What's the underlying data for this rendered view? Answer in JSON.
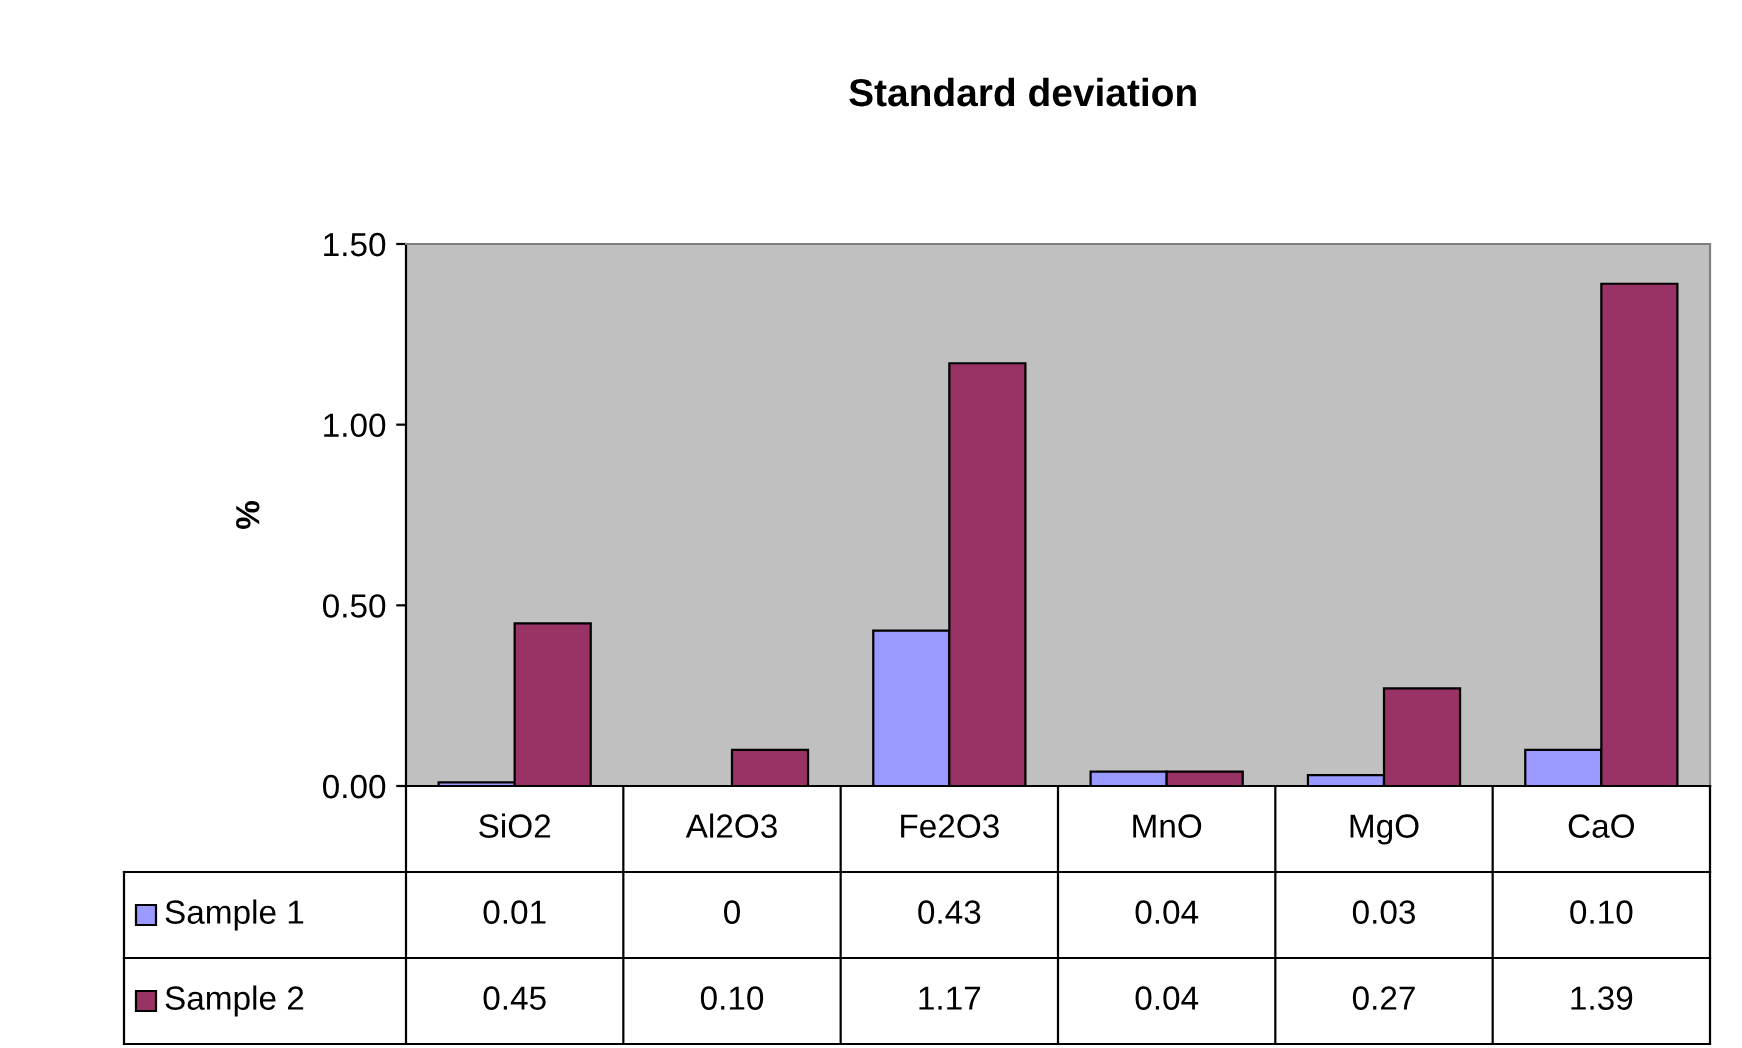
{
  "chart_data": {
    "type": "bar",
    "title": "Standard deviation",
    "ylabel": "%",
    "categories": [
      "SiO2",
      "Al2O3",
      "Fe2O3",
      "MnO",
      "MgO",
      "CaO"
    ],
    "series": [
      {
        "name": "Sample 1",
        "color": "#9999ff",
        "values": [
          0.01,
          0,
          0.43,
          0.04,
          0.03,
          0.1
        ],
        "value_labels": [
          "0.01",
          "0",
          "0.43",
          "0.04",
          "0.03",
          "0.10"
        ]
      },
      {
        "name": "Sample 2",
        "color": "#993366",
        "values": [
          0.45,
          0.1,
          1.17,
          0.04,
          0.27,
          1.39
        ],
        "value_labels": [
          "0.45",
          "0.10",
          "1.17",
          "0.04",
          "0.27",
          "1.39"
        ]
      }
    ],
    "ylim": [
      0,
      1.5
    ],
    "yticks": [
      {
        "value": 0,
        "label": "0.00"
      },
      {
        "value": 0.5,
        "label": "0.50"
      },
      {
        "value": 1.0,
        "label": "1.00"
      },
      {
        "value": 1.5,
        "label": "1.50"
      }
    ],
    "grid": false,
    "legend": "bottom"
  }
}
